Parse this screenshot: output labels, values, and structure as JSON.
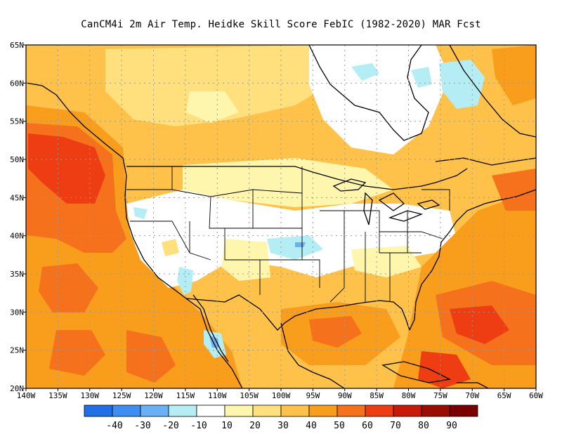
{
  "title": "CanCM4i  2m Air Temp. Heidke Skill Score FebIC (1982-2020) MAR Fcst",
  "map": {
    "lat_ticks": [
      "65N",
      "60N",
      "55N",
      "50N",
      "45N",
      "40N",
      "35N",
      "30N",
      "25N",
      "20N"
    ],
    "lon_ticks": [
      "140W",
      "135W",
      "130W",
      "125W",
      "120W",
      "115W",
      "110W",
      "105W",
      "100W",
      "95W",
      "90W",
      "85W",
      "80W",
      "75W",
      "70W",
      "65W",
      "60W"
    ],
    "grid": "dotted",
    "background": "#ffffff",
    "coast_color": "#000000"
  },
  "colorbar": {
    "levels": [
      "-40",
      "-30",
      "-20",
      "-10",
      "10",
      "20",
      "30",
      "40",
      "50",
      "60",
      "70",
      "80",
      "90"
    ],
    "colors": [
      "#1f6fe6",
      "#3c8ff0",
      "#6bb0f5",
      "#b4eef4",
      "#ffffff",
      "#fff6ae",
      "#ffe07d",
      "#fec14a",
      "#f99d1d",
      "#f6711c",
      "#ee3d13",
      "#c91909",
      "#9b0d00",
      "#7a0000"
    ]
  }
}
